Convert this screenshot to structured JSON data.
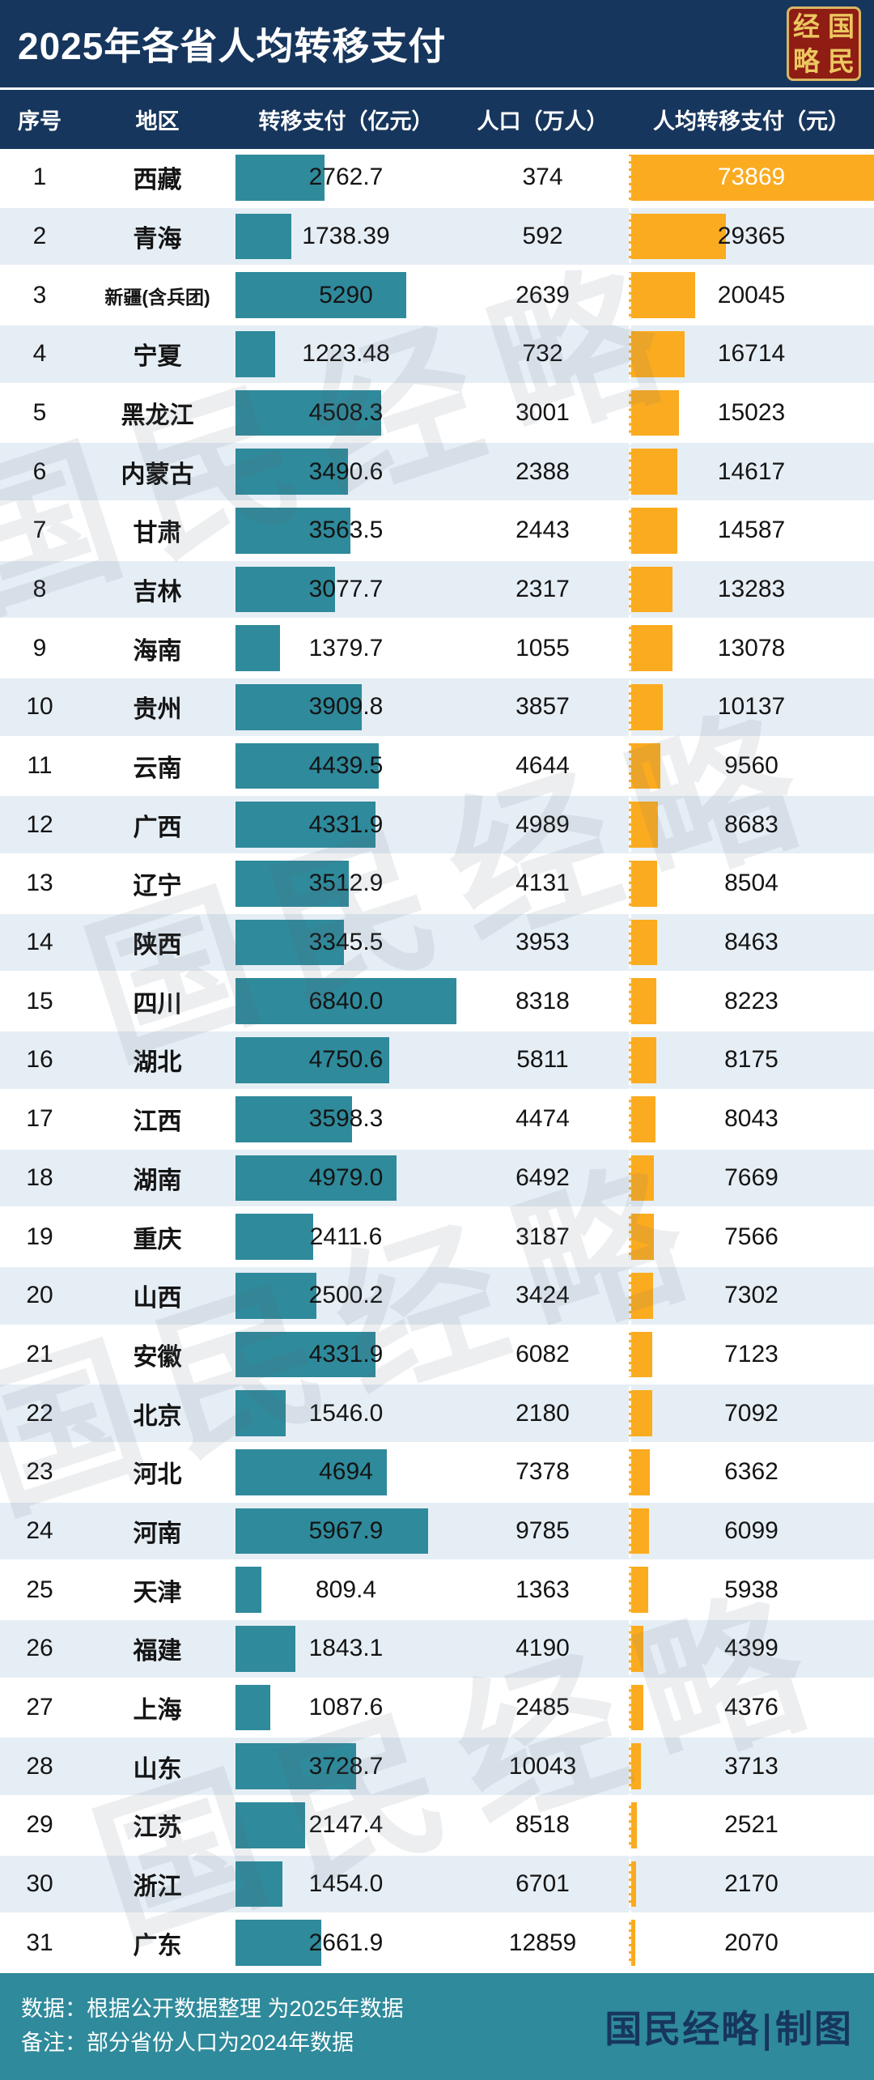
{
  "title": "2025年各省人均转移支付",
  "seal": {
    "chars": [
      "经",
      "国",
      "略",
      "民"
    ]
  },
  "watermark": "国民经略",
  "colors": {
    "header_navy": "#17365d",
    "bar_teal": "#2f8a9b",
    "bar_orange": "#fbab1f",
    "row_alt": "#e6eef5",
    "footer_teal": "#2f8a9b",
    "seal_red": "#8f1d14",
    "seal_gold": "#ecc75f"
  },
  "footer": {
    "line1": "数据：根据公开数据整理 为2025年数据",
    "line2": "备注：部分省份人口为2024年数据",
    "credit": "国民经略|制图"
  },
  "chart_data": {
    "type": "table",
    "title": "2025年各省人均转移支付",
    "columns": [
      "序号",
      "地区",
      "转移支付（亿元）",
      "人口（万人）",
      "人均转移支付（元）"
    ],
    "bar_encodings": [
      {
        "column": "转移支付（亿元）",
        "color": "#2f8a9b",
        "max": 6840
      },
      {
        "column": "人均转移支付（元）",
        "color": "#fbab1f",
        "max": 73869
      }
    ],
    "transfer_max": 6840,
    "per_capita_max": 73869,
    "rows": [
      {
        "rank": "1",
        "region": "西藏",
        "transfer": "2762.7",
        "population": "374",
        "per_capita": "73869"
      },
      {
        "rank": "2",
        "region": "青海",
        "transfer": "1738.39",
        "population": "592",
        "per_capita": "29365"
      },
      {
        "rank": "3",
        "region": "新疆(含兵团)",
        "transfer": "5290",
        "population": "2639",
        "per_capita": "20045"
      },
      {
        "rank": "4",
        "region": "宁夏",
        "transfer": "1223.48",
        "population": "732",
        "per_capita": "16714"
      },
      {
        "rank": "5",
        "region": "黑龙江",
        "transfer": "4508.3",
        "population": "3001",
        "per_capita": "15023"
      },
      {
        "rank": "6",
        "region": "内蒙古",
        "transfer": "3490.6",
        "population": "2388",
        "per_capita": "14617"
      },
      {
        "rank": "7",
        "region": "甘肃",
        "transfer": "3563.5",
        "population": "2443",
        "per_capita": "14587"
      },
      {
        "rank": "8",
        "region": "吉林",
        "transfer": "3077.7",
        "population": "2317",
        "per_capita": "13283"
      },
      {
        "rank": "9",
        "region": "海南",
        "transfer": "1379.7",
        "population": "1055",
        "per_capita": "13078"
      },
      {
        "rank": "10",
        "region": "贵州",
        "transfer": "3909.8",
        "population": "3857",
        "per_capita": "10137"
      },
      {
        "rank": "11",
        "region": "云南",
        "transfer": "4439.5",
        "population": "4644",
        "per_capita": "9560"
      },
      {
        "rank": "12",
        "region": "广西",
        "transfer": "4331.9",
        "population": "4989",
        "per_capita": "8683"
      },
      {
        "rank": "13",
        "region": "辽宁",
        "transfer": "3512.9",
        "population": "4131",
        "per_capita": "8504"
      },
      {
        "rank": "14",
        "region": "陕西",
        "transfer": "3345.5",
        "population": "3953",
        "per_capita": "8463"
      },
      {
        "rank": "15",
        "region": "四川",
        "transfer": "6840.0",
        "population": "8318",
        "per_capita": "8223"
      },
      {
        "rank": "16",
        "region": "湖北",
        "transfer": "4750.6",
        "population": "5811",
        "per_capita": "8175"
      },
      {
        "rank": "17",
        "region": "江西",
        "transfer": "3598.3",
        "population": "4474",
        "per_capita": "8043"
      },
      {
        "rank": "18",
        "region": "湖南",
        "transfer": "4979.0",
        "population": "6492",
        "per_capita": "7669"
      },
      {
        "rank": "19",
        "region": "重庆",
        "transfer": "2411.6",
        "population": "3187",
        "per_capita": "7566"
      },
      {
        "rank": "20",
        "region": "山西",
        "transfer": "2500.2",
        "population": "3424",
        "per_capita": "7302"
      },
      {
        "rank": "21",
        "region": "安徽",
        "transfer": "4331.9",
        "population": "6082",
        "per_capita": "7123"
      },
      {
        "rank": "22",
        "region": "北京",
        "transfer": "1546.0",
        "population": "2180",
        "per_capita": "7092"
      },
      {
        "rank": "23",
        "region": "河北",
        "transfer": "4694",
        "population": "7378",
        "per_capita": "6362"
      },
      {
        "rank": "24",
        "region": "河南",
        "transfer": "5967.9",
        "population": "9785",
        "per_capita": "6099"
      },
      {
        "rank": "25",
        "region": "天津",
        "transfer": "809.4",
        "population": "1363",
        "per_capita": "5938"
      },
      {
        "rank": "26",
        "region": "福建",
        "transfer": "1843.1",
        "population": "4190",
        "per_capita": "4399"
      },
      {
        "rank": "27",
        "region": "上海",
        "transfer": "1087.6",
        "population": "2485",
        "per_capita": "4376"
      },
      {
        "rank": "28",
        "region": "山东",
        "transfer": "3728.7",
        "population": "10043",
        "per_capita": "3713"
      },
      {
        "rank": "29",
        "region": "江苏",
        "transfer": "2147.4",
        "population": "8518",
        "per_capita": "2521"
      },
      {
        "rank": "30",
        "region": "浙江",
        "transfer": "1454.0",
        "population": "6701",
        "per_capita": "2170"
      },
      {
        "rank": "31",
        "region": "广东",
        "transfer": "2661.9",
        "population": "12859",
        "per_capita": "2070"
      }
    ]
  }
}
